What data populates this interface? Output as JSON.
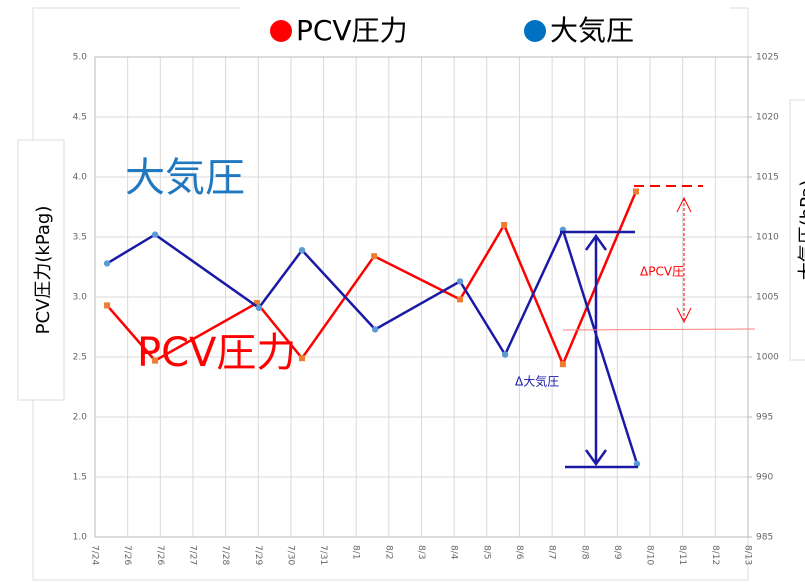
{
  "chart_data": {
    "type": "line",
    "legend": [
      "PCV圧力",
      "大気圧"
    ],
    "ylabel": "PCV圧力(kPag)",
    "y2label": "大気圧(hPa)",
    "annotations": [
      "大気圧",
      "PCV圧力",
      "ΔPCV圧",
      "Δ大気圧"
    ],
    "xlim": [
      0,
      20
    ],
    "xticks": [
      {
        "value": 0,
        "label": "7/24"
      },
      {
        "value": 1,
        "label": "7/26"
      },
      {
        "value": 2,
        "label": "7/26"
      },
      {
        "value": 3,
        "label": "7/27"
      },
      {
        "value": 4,
        "label": "7/28"
      },
      {
        "value": 5,
        "label": "7/29"
      },
      {
        "value": 6,
        "label": "7/30"
      },
      {
        "value": 7,
        "label": "7/31"
      },
      {
        "value": 8,
        "label": "8/1"
      },
      {
        "value": 9,
        "label": "8/2"
      },
      {
        "value": 10,
        "label": "8/3"
      },
      {
        "value": 11,
        "label": "8/4"
      },
      {
        "value": 12,
        "label": "8/5"
      },
      {
        "value": 13,
        "label": "8/6"
      },
      {
        "value": 14,
        "label": "8/7"
      },
      {
        "value": 15,
        "label": "8/8"
      },
      {
        "value": 16,
        "label": "8/9"
      },
      {
        "value": 17,
        "label": "8/10"
      },
      {
        "value": 18,
        "label": "8/11"
      },
      {
        "value": 19,
        "label": "8/12"
      },
      {
        "value": 20,
        "label": "8/13"
      }
    ],
    "ylim": [
      1.0,
      5.0
    ],
    "yticks": [
      {
        "value": 1,
        "label": "1.0"
      },
      1.5,
      {
        "value": 2,
        "label": "2.0"
      },
      2.5,
      {
        "value": 3,
        "label": "3.0"
      },
      3.5,
      {
        "value": 4,
        "label": "4.0"
      },
      4.5,
      {
        "value": 5,
        "label": "5.0"
      }
    ],
    "y2lim": [
      985,
      1025
    ],
    "y2ticks": [
      985,
      990,
      995,
      1000,
      1005,
      1010,
      1015,
      1020,
      1025
    ],
    "grid": true,
    "series": [
      {
        "name": "PCV圧力",
        "color": "#ff0000",
        "marker_color": "#ed7d31",
        "x": [
          0.37,
          1.84,
          4.96,
          6.34,
          8.55,
          11.18,
          12.53,
          14.33,
          16.57
        ],
        "values": [
          2.93,
          2.47,
          2.95,
          2.49,
          3.34,
          2.98,
          3.6,
          2.44,
          3.88
        ]
      },
      {
        "name": "大気圧",
        "color": "#1a1aa6",
        "marker_color": "#5b9bd5",
        "axis": "y2",
        "x": [
          0.37,
          1.84,
          5.02,
          6.34,
          8.58,
          11.18,
          12.56,
          14.33,
          16.6
        ],
        "values": [
          1007.8,
          1010.2,
          1004.1,
          1008.9,
          1002.3,
          1006.3,
          1000.2,
          1010.6,
          991.1
        ]
      }
    ]
  }
}
